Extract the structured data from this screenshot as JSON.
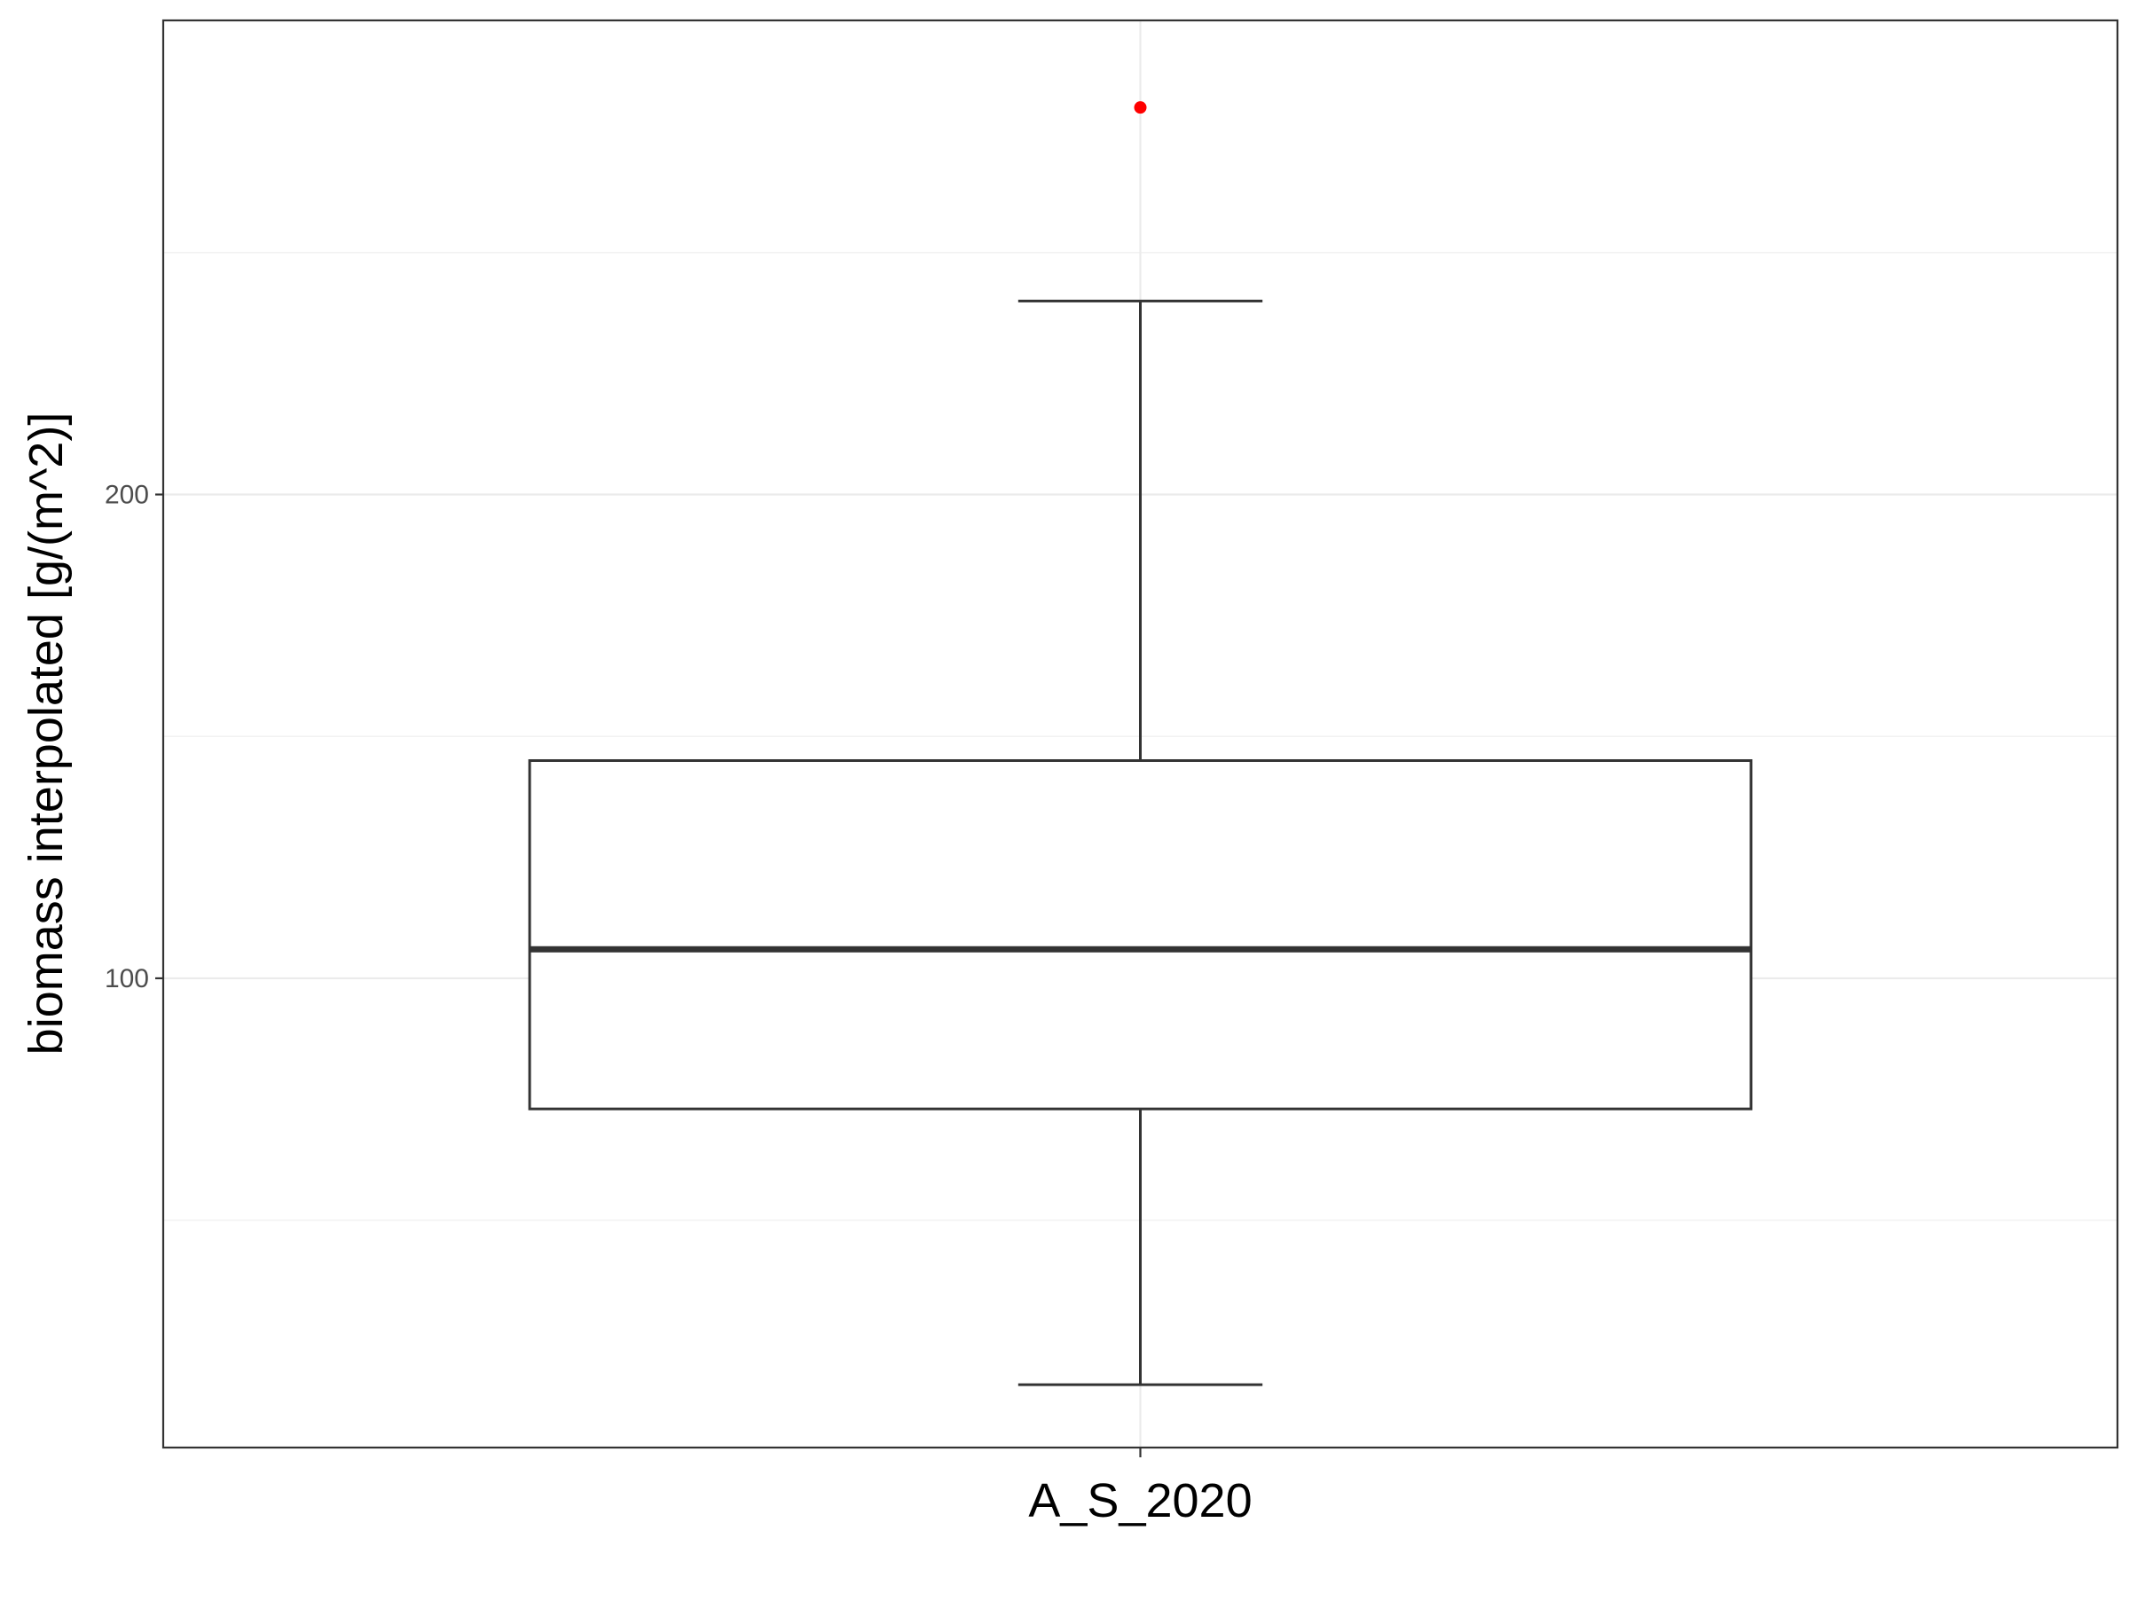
{
  "chart_data": {
    "type": "box",
    "title": "",
    "xlabel": "",
    "ylabel": "biomass interpolated [g/(m^2)]",
    "categories": [
      "A_S_2020"
    ],
    "y_ticks": [
      100,
      200
    ],
    "ylim": [
      3,
      298
    ],
    "grid": true,
    "legend": "none",
    "boxes": [
      {
        "category": "A_S_2020",
        "whisker_low": 16,
        "q1": 73,
        "median": 106,
        "q3": 145,
        "whisker_high": 240,
        "outliers": [
          280
        ]
      }
    ],
    "colors": {
      "box_line": "#333333",
      "median_line": "#333333",
      "outlier": "#ff0000",
      "grid_major": "#ebebeb",
      "grid_minor": "#f2f2f2",
      "panel_border": "#333333",
      "background": "#ffffff"
    }
  }
}
